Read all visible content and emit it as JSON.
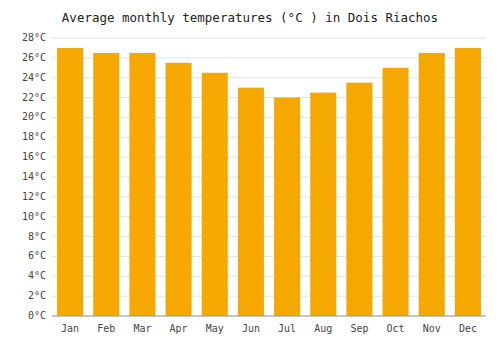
{
  "chart_data": {
    "type": "bar",
    "title": "Average monthly temperatures (°C ) in Dois Riachos",
    "categories": [
      "Jan",
      "Feb",
      "Mar",
      "Apr",
      "May",
      "Jun",
      "Jul",
      "Aug",
      "Sep",
      "Oct",
      "Nov",
      "Dec"
    ],
    "values": [
      27.0,
      26.5,
      26.5,
      25.5,
      24.5,
      23.0,
      22.0,
      22.5,
      23.5,
      25.0,
      26.5,
      27.0
    ],
    "color": "#F5A800",
    "ylim": [
      0,
      28
    ],
    "yticks": [
      {
        "value": 0,
        "label": "0°C"
      },
      {
        "value": 2,
        "label": "2°C"
      },
      {
        "value": 4,
        "label": "4°C"
      },
      {
        "value": 6,
        "label": "6°C"
      },
      {
        "value": 8,
        "label": "8°C"
      },
      {
        "value": 10,
        "label": "10°C"
      },
      {
        "value": 12,
        "label": "12°C"
      },
      {
        "value": 14,
        "label": "14°C"
      },
      {
        "value": 16,
        "label": "16°C"
      },
      {
        "value": 18,
        "label": "18°C"
      },
      {
        "value": 20,
        "label": "20°C"
      },
      {
        "value": 22,
        "label": "22°C"
      },
      {
        "value": 24,
        "label": "24°C"
      },
      {
        "value": 26,
        "label": "26°C"
      },
      {
        "value": 28,
        "label": "28°C"
      }
    ],
    "grid": true
  }
}
